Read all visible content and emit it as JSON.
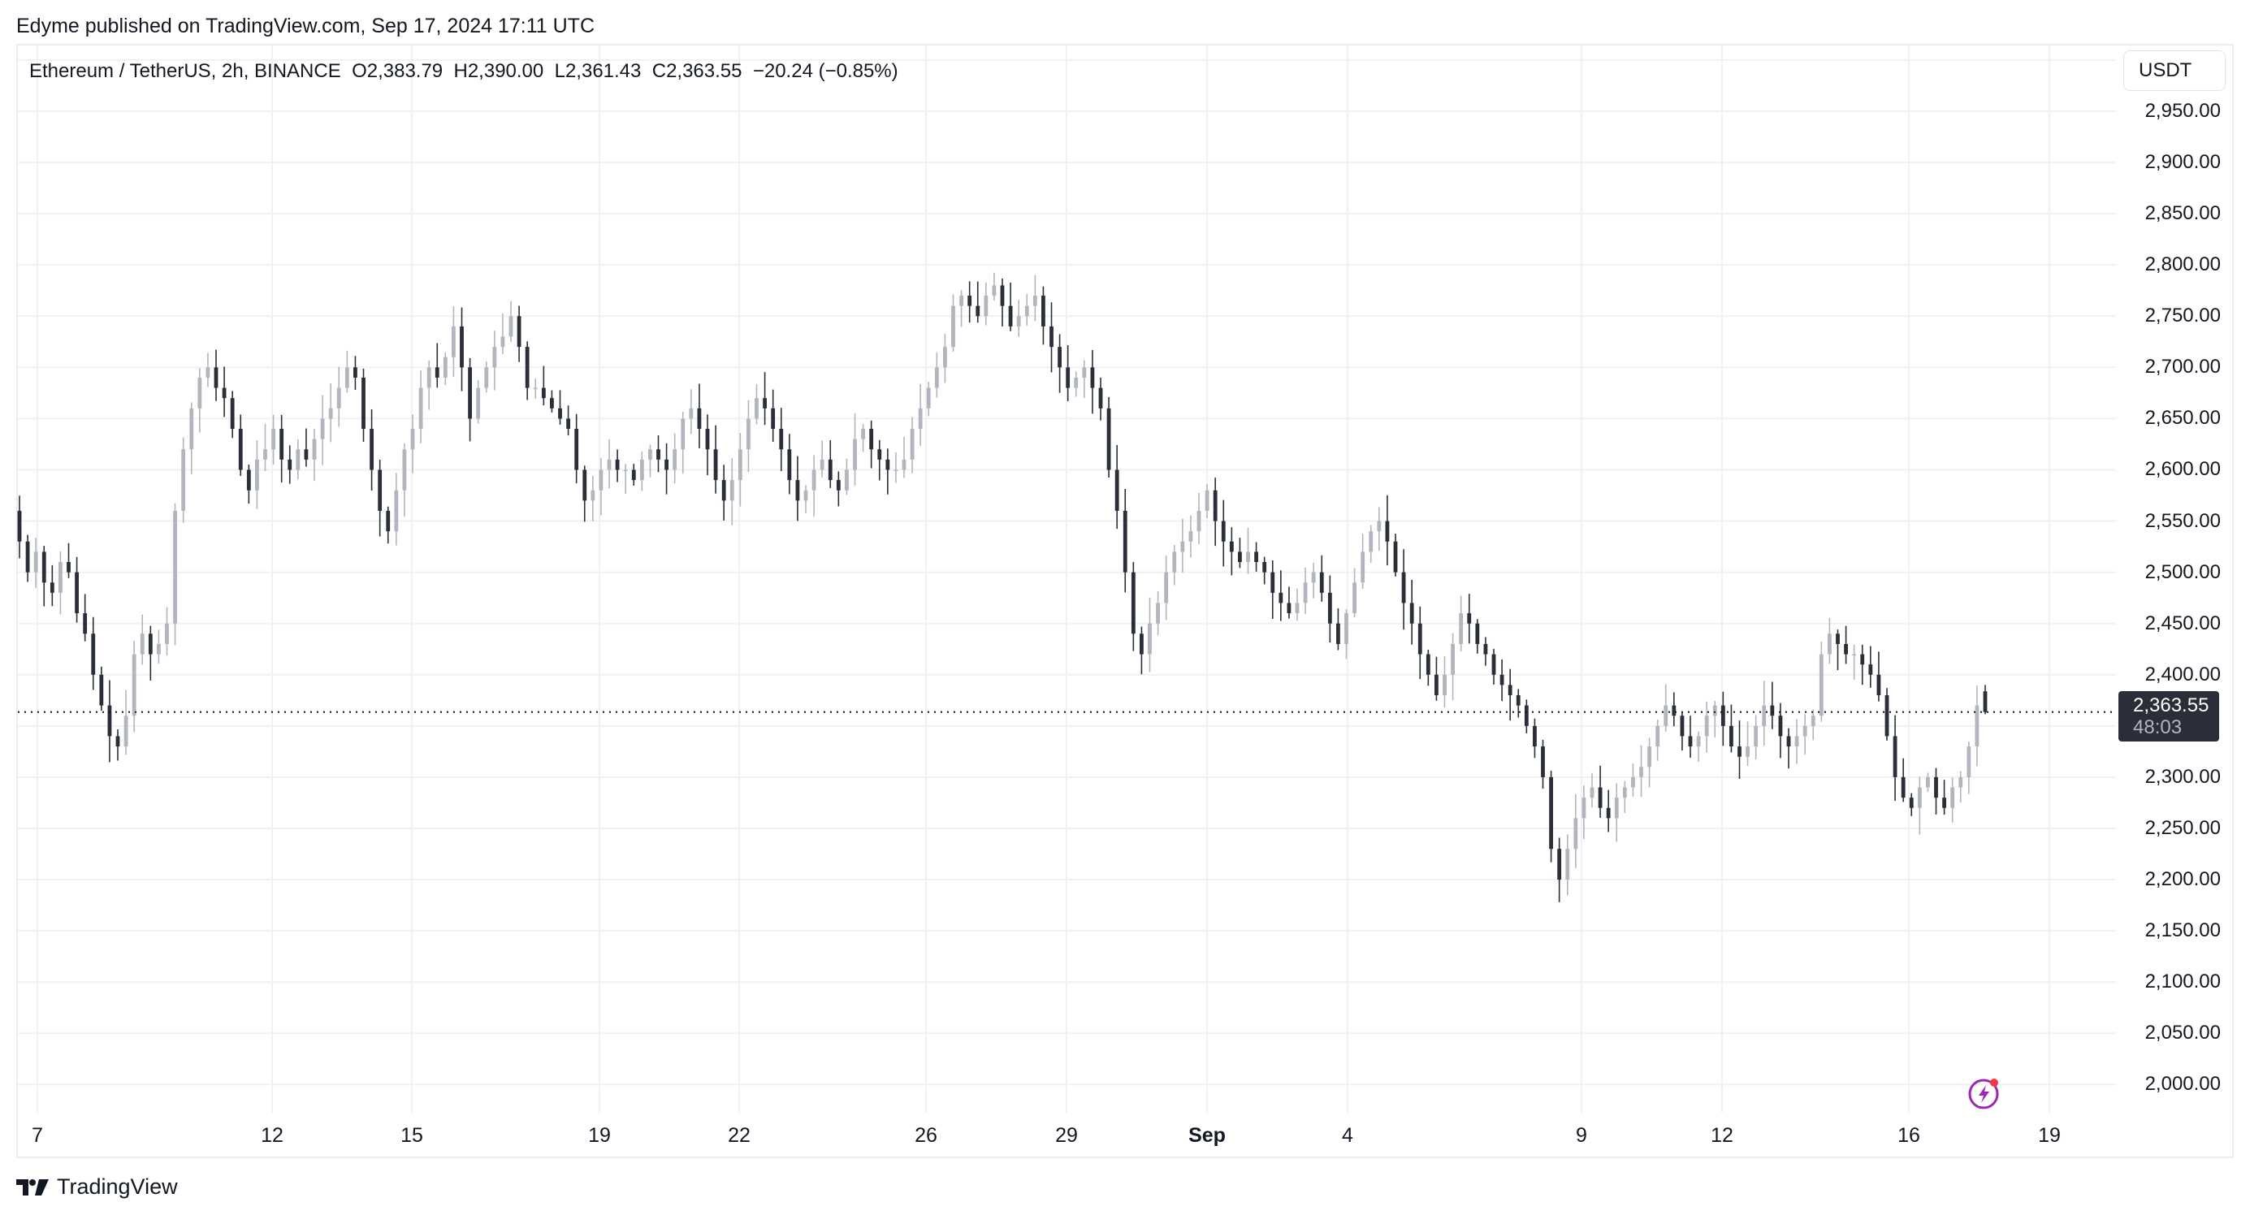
{
  "header": {
    "published": "Edyme published on TradingView.com, Sep 17, 2024 17:11 UTC"
  },
  "legend": {
    "symbol": "Ethereum / TetherUS, 2h, BINANCE",
    "open": "O2,383.79",
    "high": "H2,390.00",
    "low": "L2,361.43",
    "close": "C2,363.55",
    "change": "−20.24 (−0.85%)"
  },
  "price_axis": {
    "unit": "USDT",
    "labels": [
      "2,950.00",
      "2,900.00",
      "2,850.00",
      "2,800.00",
      "2,750.00",
      "2,700.00",
      "2,650.00",
      "2,600.00",
      "2,550.00",
      "2,500.00",
      "2,450.00",
      "2,400.00",
      "2,300.00",
      "2,250.00",
      "2,200.00",
      "2,150.00",
      "2,100.00",
      "2,050.00",
      "2,000.00"
    ],
    "current_price": "2,363.55",
    "countdown": "48:03"
  },
  "time_axis": {
    "labels": [
      {
        "text": "7",
        "x": 46,
        "bold": false
      },
      {
        "text": "12",
        "x": 335,
        "bold": false
      },
      {
        "text": "15",
        "x": 507,
        "bold": false
      },
      {
        "text": "19",
        "x": 738,
        "bold": false
      },
      {
        "text": "22",
        "x": 910,
        "bold": false
      },
      {
        "text": "26",
        "x": 1140,
        "bold": false
      },
      {
        "text": "29",
        "x": 1313,
        "bold": false
      },
      {
        "text": "Sep",
        "x": 1486,
        "bold": true
      },
      {
        "text": "4",
        "x": 1659,
        "bold": false
      },
      {
        "text": "9",
        "x": 1947,
        "bold": false
      },
      {
        "text": "12",
        "x": 2120,
        "bold": false
      },
      {
        "text": "16",
        "x": 2350,
        "bold": false
      },
      {
        "text": "19",
        "x": 2523,
        "bold": false
      }
    ]
  },
  "footer": {
    "brand": "TradingView"
  },
  "colors": {
    "up": "#b2b5be",
    "down": "#2a2e39",
    "grid": "#f0f1f4",
    "accent": "#9c27b0",
    "badge": "#f23645"
  },
  "chart_data": {
    "type": "candlestick",
    "title": "Ethereum / TetherUS, 2h, BINANCE",
    "xlabel": "",
    "ylabel": "USDT",
    "ylim": [
      1990,
      2990
    ],
    "grid": true,
    "current_price": 2363.55,
    "x_ticks": [
      "7",
      "12",
      "15",
      "19",
      "22",
      "26",
      "29",
      "Sep",
      "4",
      "9",
      "12",
      "16",
      "19"
    ],
    "y_ticks": [
      2000,
      2050,
      2100,
      2150,
      2200,
      2250,
      2300,
      2350,
      2400,
      2450,
      2500,
      2550,
      2600,
      2650,
      2700,
      2750,
      2800,
      2850,
      2900,
      2950
    ],
    "last_bar": {
      "open": 2383.79,
      "high": 2390.0,
      "low": 2361.43,
      "close": 2363.55,
      "change": -20.24,
      "change_pct": -0.85
    },
    "close_path": [
      2530,
      2500,
      2520,
      2490,
      2480,
      2510,
      2500,
      2460,
      2440,
      2400,
      2370,
      2340,
      2330,
      2360,
      2420,
      2440,
      2420,
      2430,
      2450,
      2560,
      2620,
      2660,
      2690,
      2700,
      2680,
      2670,
      2640,
      2600,
      2580,
      2610,
      2620,
      2640,
      2610,
      2600,
      2620,
      2610,
      2630,
      2650,
      2660,
      2680,
      2700,
      2690,
      2640,
      2600,
      2560,
      2540,
      2580,
      2620,
      2640,
      2680,
      2700,
      2690,
      2710,
      2740,
      2700,
      2650,
      2680,
      2700,
      2720,
      2730,
      2750,
      2720,
      2680,
      2680,
      2670,
      2660,
      2650,
      2640,
      2600,
      2570,
      2580,
      2600,
      2610,
      2600,
      2600,
      2590,
      2610,
      2620,
      2610,
      2600,
      2620,
      2650,
      2660,
      2640,
      2620,
      2590,
      2570,
      2590,
      2620,
      2650,
      2670,
      2660,
      2640,
      2620,
      2590,
      2570,
      2580,
      2600,
      2610,
      2590,
      2580,
      2600,
      2630,
      2640,
      2620,
      2610,
      2600,
      2600,
      2610,
      2640,
      2660,
      2680,
      2700,
      2720,
      2760,
      2770,
      2760,
      2750,
      2770,
      2780,
      2760,
      2740,
      2750,
      2760,
      2770,
      2740,
      2720,
      2700,
      2680,
      2690,
      2700,
      2680,
      2660,
      2600,
      2560,
      2500,
      2440,
      2420,
      2450,
      2470,
      2500,
      2520,
      2530,
      2540,
      2560,
      2580,
      2550,
      2530,
      2520,
      2510,
      2520,
      2510,
      2500,
      2480,
      2470,
      2460,
      2470,
      2490,
      2500,
      2480,
      2450,
      2430,
      2460,
      2490,
      2520,
      2540,
      2550,
      2530,
      2500,
      2470,
      2450,
      2420,
      2400,
      2380,
      2400,
      2430,
      2460,
      2450,
      2430,
      2420,
      2400,
      2390,
      2380,
      2370,
      2350,
      2330,
      2300,
      2230,
      2200,
      2230,
      2260,
      2280,
      2290,
      2270,
      2260,
      2280,
      2290,
      2300,
      2310,
      2330,
      2350,
      2370,
      2360,
      2340,
      2330,
      2340,
      2360,
      2370,
      2350,
      2330,
      2320,
      2330,
      2350,
      2370,
      2360,
      2340,
      2330,
      2340,
      2350,
      2360,
      2420,
      2440,
      2430,
      2420,
      2420,
      2410,
      2400,
      2380,
      2340,
      2300,
      2280,
      2270,
      2290,
      2300,
      2280,
      2270,
      2290,
      2300,
      2330,
      2370,
      2364
    ]
  }
}
